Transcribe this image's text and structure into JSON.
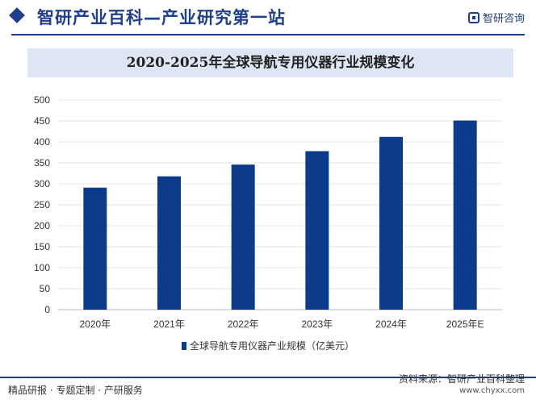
{
  "header": {
    "title": "智研产业百科—产业研究第一站",
    "logo_text": "智研咨询",
    "brand_icon": "diamond-icon",
    "logo_icon": "zhiyan-logo-icon"
  },
  "colors": {
    "bar": "#0c3b8c",
    "accent": "#1f3f8c",
    "title_band": "#dfe6f3"
  },
  "chart_data": {
    "type": "bar",
    "title": "2020-2025年全球导航专用仪器行业规模变化",
    "categories": [
      "2020年",
      "2021年",
      "2022年",
      "2023年",
      "2024年",
      "2025年E"
    ],
    "series": [
      {
        "name": "全球导航专用仪器产业规模（亿美元）",
        "values": [
          291,
          318,
          346,
          378,
          412,
          451
        ]
      }
    ],
    "ylim": [
      0,
      500
    ],
    "yticks": [
      0,
      50,
      100,
      150,
      200,
      250,
      300,
      350,
      400,
      450,
      500
    ],
    "xlabel": "",
    "ylabel": "",
    "grid": true,
    "legend": "bottom-center"
  },
  "footer": {
    "left": "精品研报 · 专题定制 · 产研服务",
    "source": "资料来源：智研产业百科整理",
    "url": "www.chyxx.com"
  }
}
